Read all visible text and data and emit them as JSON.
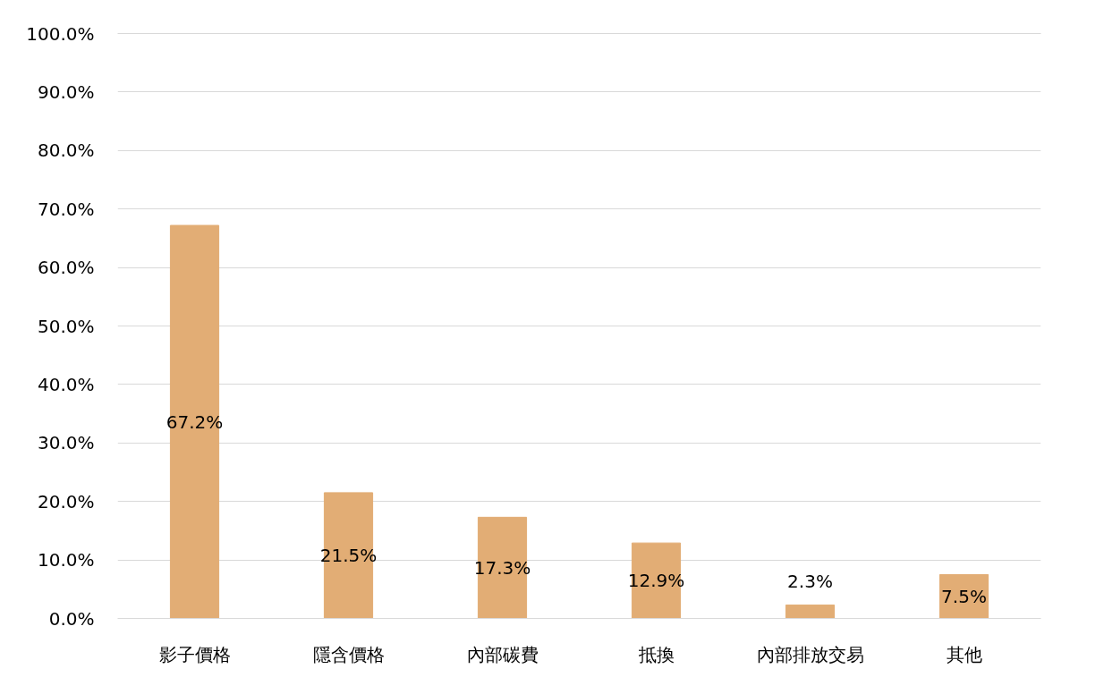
{
  "chart_data": {
    "type": "bar",
    "categories": [
      "影子價格",
      "隱含價格",
      "內部碳費",
      "抵換",
      "內部排放交易",
      "其他"
    ],
    "values": [
      67.2,
      21.5,
      17.3,
      12.9,
      2.3,
      7.5
    ],
    "value_labels": [
      "67.2%",
      "21.5%",
      "17.3%",
      "12.9%",
      "2.3%",
      "7.5%"
    ],
    "color": "#e2ad75",
    "ylim": [
      0,
      100
    ],
    "yticks": [
      {
        "value": 0,
        "label": "0.0%"
      },
      {
        "value": 10,
        "label": "10.0%"
      },
      {
        "value": 20,
        "label": "20.0%"
      },
      {
        "value": 30,
        "label": "30.0%"
      },
      {
        "value": 40,
        "label": "40.0%"
      },
      {
        "value": 50,
        "label": "50.0%"
      },
      {
        "value": 60,
        "label": "60.0%"
      },
      {
        "value": 70,
        "label": "70.0%"
      },
      {
        "value": 80,
        "label": "80.0%"
      },
      {
        "value": 90,
        "label": "90.0%"
      },
      {
        "value": 100,
        "label": "100.0%"
      }
    ],
    "grid": "y"
  }
}
